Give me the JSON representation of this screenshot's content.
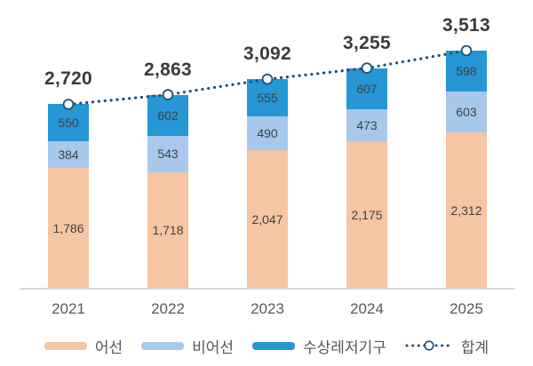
{
  "chart_data": {
    "type": "bar",
    "subtype": "stacked-column-with-total-line",
    "categories": [
      "2021",
      "2022",
      "2023",
      "2024",
      "2025"
    ],
    "series": [
      {
        "name": "어선",
        "color": "#F5C5A4",
        "values": [
          1786,
          1718,
          2047,
          2175,
          2312
        ]
      },
      {
        "name": "비어선",
        "color": "#A8C8EB",
        "values": [
          384,
          543,
          490,
          473,
          603
        ]
      },
      {
        "name": "수상레저기구",
        "color": "#2697D4",
        "values": [
          550,
          602,
          555,
          607,
          598
        ]
      }
    ],
    "total_line": {
      "name": "합계",
      "color": "#1F4E79",
      "marker": "open-circle",
      "values": [
        2720,
        2863,
        3092,
        3255,
        3513
      ],
      "labels": [
        "2,720",
        "2,863",
        "3,092",
        "3,255",
        "3,513"
      ]
    },
    "segment_labels": [
      [
        "1,786",
        "1,718",
        "2,047",
        "2,175",
        "2,312"
      ],
      [
        "384",
        "543",
        "490",
        "473",
        "603"
      ],
      [
        "550",
        "602",
        "555",
        "607",
        "598"
      ]
    ],
    "ylim": [
      0,
      3513
    ],
    "grid": false,
    "legend_position": "bottom",
    "data_labels": true
  },
  "colors": {
    "background": "#FFFFFF",
    "axis_line": "#D9D9D9",
    "total_label_text": "#3B3B3B",
    "segment_label_text": "#404040",
    "tick_label_text": "#595959",
    "legend_label_text": "#595959"
  }
}
